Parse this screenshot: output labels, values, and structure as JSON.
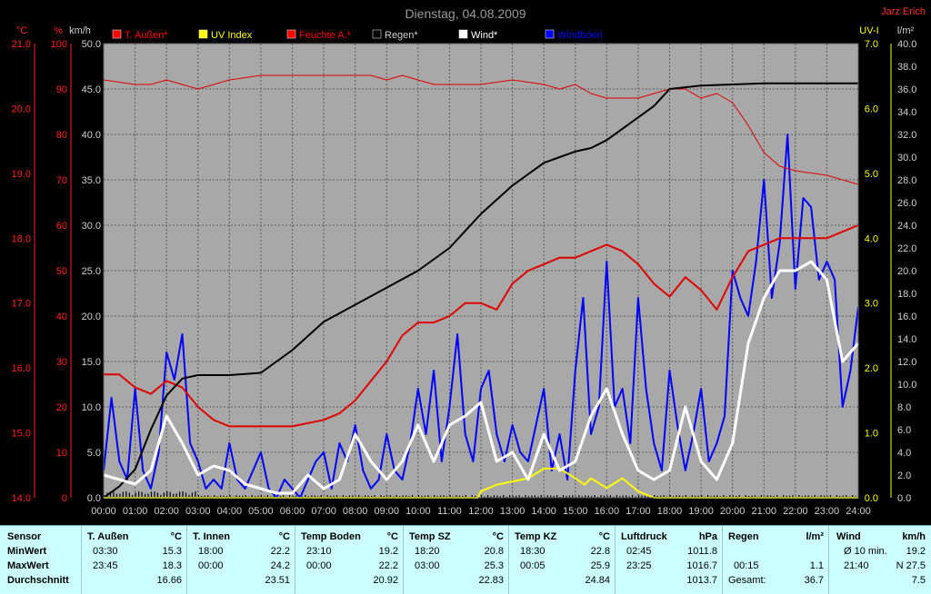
{
  "header": {
    "title": "Dienstag, 04.08.2009",
    "author": "Jarz Erich"
  },
  "chart_data": {
    "type": "line",
    "x_ticks": [
      "00:00",
      "01:00",
      "02:00",
      "03:00",
      "04:00",
      "05:00",
      "06:00",
      "07:00",
      "08:00",
      "09:00",
      "10:00",
      "11:00",
      "12:00",
      "13:00",
      "14:00",
      "15:00",
      "16:00",
      "17:00",
      "18:00",
      "19:00",
      "20:00",
      "21:00",
      "22:00",
      "23:00",
      "24:00"
    ],
    "axes": {
      "temp": {
        "unit": "°C",
        "ticks": [
          "21.0",
          "20.0",
          "19.0",
          "18.0",
          "17.0",
          "16.0",
          "15.0",
          "14.0"
        ],
        "range": [
          14,
          21
        ]
      },
      "humidity": {
        "unit": "%",
        "ticks": [
          "100",
          "90",
          "80",
          "70",
          "60",
          "50",
          "40",
          "30",
          "20",
          "10",
          "0"
        ],
        "range": [
          0,
          100
        ]
      },
      "wind": {
        "unit": "km/h",
        "ticks": [
          "50.0",
          "45.0",
          "40.0",
          "35.0",
          "30.0",
          "25.0",
          "20.0",
          "15.0",
          "10.0",
          "5.0",
          "0.0"
        ],
        "range": [
          0,
          50
        ]
      },
      "uv": {
        "unit": "UV-I",
        "ticks": [
          "7.0",
          "6.0",
          "5.0",
          "4.0",
          "3.0",
          "2.0",
          "1.0",
          "0.0"
        ],
        "range": [
          0,
          7
        ]
      },
      "rain": {
        "unit": "l/m²",
        "ticks": [
          "40.0",
          "38.0",
          "36.0",
          "34.0",
          "32.0",
          "30.0",
          "28.0",
          "26.0",
          "24.0",
          "22.0",
          "20.0",
          "18.0",
          "16.0",
          "14.0",
          "12.0",
          "10.0",
          "8.0",
          "6.0",
          "4.0",
          "2.0",
          "0.0"
        ],
        "range": [
          0,
          40
        ]
      }
    },
    "legend": [
      {
        "name": "T. Außen*",
        "color": "#ff0000"
      },
      {
        "name": "UV Index",
        "color": "#ffff00"
      },
      {
        "name": "Feuchte A.*",
        "color": "#ff0000"
      },
      {
        "name": "Regen*",
        "color": "#000000"
      },
      {
        "name": "Wind*",
        "color": "#ffffff"
      },
      {
        "name": "Windböen",
        "color": "#0000ff"
      }
    ],
    "series": [
      {
        "name": "T. Außen*",
        "axis": "temp",
        "color": "#e00000",
        "x": [
          0,
          0.5,
          1,
          1.5,
          2,
          2.5,
          3,
          3.5,
          4,
          5,
          6,
          7,
          7.5,
          8,
          8.5,
          9,
          9.5,
          10,
          10.5,
          11,
          11.5,
          12,
          12.5,
          13,
          13.5,
          14,
          14.5,
          15,
          15.5,
          16,
          16.5,
          17,
          17.5,
          18,
          18.5,
          19,
          19.5,
          20,
          20.5,
          21,
          21.5,
          22,
          22.5,
          23,
          23.5,
          24
        ],
        "y": [
          15.9,
          15.9,
          15.7,
          15.6,
          15.8,
          15.7,
          15.4,
          15.2,
          15.1,
          15.1,
          15.1,
          15.2,
          15.3,
          15.5,
          15.8,
          16.1,
          16.5,
          16.7,
          16.7,
          16.8,
          17.0,
          17.0,
          16.9,
          17.3,
          17.5,
          17.6,
          17.7,
          17.7,
          17.8,
          17.9,
          17.8,
          17.6,
          17.3,
          17.1,
          17.4,
          17.2,
          16.9,
          17.4,
          17.8,
          17.9,
          18.0,
          18.0,
          18.0,
          18.0,
          18.1,
          18.2
        ]
      },
      {
        "name": "Feuchte A.*",
        "axis": "humidity",
        "color": "#e00000",
        "x": [
          0,
          1,
          1.5,
          2,
          2.5,
          3,
          4,
          5,
          6,
          7,
          8,
          8.5,
          9,
          9.5,
          10,
          10.5,
          11,
          12,
          13,
          14,
          14.5,
          15,
          15.5,
          16,
          16.5,
          17,
          17.5,
          18,
          18.5,
          19,
          19.5,
          20,
          20.5,
          21,
          21.5,
          22,
          23,
          24
        ],
        "y": [
          92,
          91,
          91,
          92,
          91,
          90,
          92,
          93,
          93,
          93,
          93,
          93,
          92,
          93,
          92,
          91,
          91,
          91,
          92,
          91,
          90,
          91,
          89,
          88,
          88,
          88,
          89,
          90,
          90,
          88,
          89,
          87,
          82,
          76,
          73,
          72,
          71,
          69
        ]
      },
      {
        "name": "Regen*",
        "axis": "rain",
        "color": "#000000",
        "x": [
          0,
          0.5,
          1,
          1.5,
          2,
          2.5,
          3,
          4,
          5,
          5.5,
          6,
          7,
          8,
          9,
          10,
          11,
          12,
          13,
          14,
          14.5,
          15,
          15.5,
          16,
          16.5,
          17,
          17.5,
          18,
          19,
          20,
          21,
          22,
          23,
          24
        ],
        "y": [
          0,
          1,
          2.5,
          6,
          9,
          10.5,
          10.8,
          10.8,
          11,
          12,
          13,
          15.5,
          17,
          18.5,
          20,
          22,
          25,
          27.5,
          29.5,
          30,
          30.5,
          30.8,
          31.5,
          32.5,
          33.5,
          34.5,
          36,
          36.3,
          36.4,
          36.5,
          36.5,
          36.5,
          36.5
        ]
      },
      {
        "name": "UV Index",
        "axis": "uv",
        "color": "#ffff00",
        "x": [
          0,
          11.9,
          12,
          12.5,
          13,
          13.5,
          14,
          14.5,
          15,
          15.3,
          15.5,
          16,
          16.5,
          17,
          17.5,
          18,
          24
        ],
        "y": [
          0,
          0,
          0.1,
          0.2,
          0.25,
          0.3,
          0.45,
          0.45,
          0.3,
          0.2,
          0.3,
          0.15,
          0.3,
          0.1,
          0,
          0,
          0
        ]
      },
      {
        "name": "Wind*",
        "axis": "wind",
        "color": "#ffffff",
        "x": [
          0,
          0.5,
          1,
          1.5,
          2,
          2.5,
          3,
          3.5,
          4,
          4.5,
          5,
          5.5,
          6,
          6.5,
          7,
          7.5,
          8,
          8.5,
          9,
          9.5,
          10,
          10.5,
          11,
          11.5,
          12,
          12.5,
          13,
          13.5,
          14,
          14.5,
          15,
          15.5,
          16,
          16.5,
          17,
          17.5,
          18,
          18.5,
          19,
          19.5,
          20,
          20.5,
          21,
          21.5,
          22,
          22.5,
          23,
          23.5,
          24
        ],
        "y": [
          2.5,
          2,
          1.5,
          3,
          9,
          6,
          2.5,
          3.5,
          3,
          1.5,
          1,
          0.5,
          0.5,
          2.5,
          1,
          2,
          7,
          4,
          2,
          4,
          8,
          4,
          8,
          9,
          10.5,
          4,
          5,
          2,
          7,
          3,
          4,
          9,
          12,
          7,
          3,
          2,
          3,
          10,
          4,
          2,
          6,
          17,
          22,
          25,
          25,
          26,
          24,
          15,
          17
        ]
      },
      {
        "name": "Windböen",
        "axis": "wind",
        "color": "#0000ff",
        "x": [
          0,
          0.25,
          0.5,
          0.75,
          1,
          1.25,
          1.5,
          1.75,
          2,
          2.25,
          2.5,
          2.75,
          3,
          3.25,
          3.5,
          3.75,
          4,
          4.25,
          4.5,
          4.75,
          5,
          5.25,
          5.5,
          5.75,
          6,
          6.25,
          6.5,
          6.75,
          7,
          7.25,
          7.5,
          7.75,
          8,
          8.25,
          8.5,
          8.75,
          9,
          9.25,
          9.5,
          9.75,
          10,
          10.25,
          10.5,
          10.75,
          11,
          11.25,
          11.5,
          11.75,
          12,
          12.25,
          12.5,
          12.75,
          13,
          13.25,
          13.5,
          13.75,
          14,
          14.25,
          14.5,
          14.75,
          15,
          15.25,
          15.5,
          15.75,
          16,
          16.25,
          16.5,
          16.75,
          17,
          17.25,
          17.5,
          17.75,
          18,
          18.25,
          18.5,
          18.75,
          19,
          19.25,
          19.5,
          19.75,
          20,
          20.25,
          20.5,
          20.75,
          21,
          21.25,
          21.5,
          21.75,
          22,
          22.25,
          22.5,
          22.75,
          23,
          23.25,
          23.5,
          23.75,
          24
        ],
        "y": [
          3,
          11,
          4,
          2,
          12,
          3,
          1,
          5,
          16,
          13,
          18,
          6,
          4,
          1,
          2,
          1,
          6,
          2,
          1,
          3,
          5,
          1,
          0,
          2,
          1,
          0,
          2,
          4,
          5,
          1,
          6,
          4,
          8,
          3,
          1,
          2,
          7,
          3,
          2,
          6,
          12,
          7,
          14,
          4,
          10,
          18,
          7,
          4,
          12,
          14,
          7,
          4,
          8,
          5,
          4,
          8,
          12,
          3,
          7,
          2,
          14,
          22,
          7,
          10,
          26,
          10,
          12,
          6,
          22,
          12,
          6,
          3,
          14,
          8,
          3,
          7,
          12,
          4,
          6,
          9,
          25,
          22,
          20,
          26,
          35,
          22,
          28,
          40,
          23,
          33,
          32,
          24,
          26,
          24,
          10,
          14,
          21
        ]
      }
    ]
  },
  "stats": {
    "labels": {
      "sensor": "Sensor",
      "min": "MinWert",
      "max": "MaxWert",
      "avg": "Durchschnitt"
    },
    "columns": [
      {
        "name": "T. Außen",
        "unit": "°C",
        "min_time": "03:30",
        "min_val": "15.3",
        "max_time": "23:45",
        "max_val": "18.3",
        "avg": "16.66"
      },
      {
        "name": "T. Innen",
        "unit": "°C",
        "min_time": "18:00",
        "min_val": "22.2",
        "max_time": "00:00",
        "max_val": "24.2",
        "avg": "23.51"
      },
      {
        "name": "Temp Boden",
        "unit": "°C",
        "min_time": "23:10",
        "min_val": "19.2",
        "max_time": "00:00",
        "max_val": "22.2",
        "avg": "20.92"
      },
      {
        "name": "Temp SZ",
        "unit": "°C",
        "min_time": "18:20",
        "min_val": "20.8",
        "max_time": "03:00",
        "max_val": "25.3",
        "avg": "22.83"
      },
      {
        "name": "Temp KZ",
        "unit": "°C",
        "min_time": "18:30",
        "min_val": "22.8",
        "max_time": "00:05",
        "max_val": "25.9",
        "avg": "24.84"
      },
      {
        "name": "Luftdruck",
        "unit": "hPa",
        "min_time": "02:45",
        "min_val": "1011.8",
        "max_time": "23:25",
        "max_val": "1016.7",
        "avg": "1013.7"
      }
    ],
    "rain": {
      "name": "Regen",
      "unit": "l/m²",
      "max_time": "00:15",
      "max_val": "1.1",
      "total_label": "Gesamt:",
      "total_val": "36.7"
    },
    "wind": {
      "name": "Wind",
      "unit": "km/h",
      "min_label": "Ø 10 min.",
      "min_val": "19.2",
      "max_time": "21:40",
      "max_val": "N 27.5",
      "avg": "7.5"
    }
  }
}
